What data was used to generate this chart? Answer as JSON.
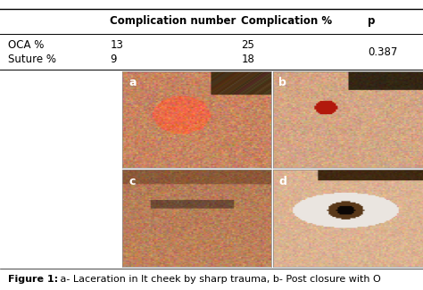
{
  "table_header": [
    "",
    "Complication number",
    "Complication %",
    "p"
  ],
  "table_rows": [
    [
      "OCA %",
      "13",
      "25",
      ""
    ],
    [
      "Suture %",
      "9",
      "18",
      "0.387"
    ]
  ],
  "p_value": "0.387",
  "caption_bold": "Figure 1:",
  "caption_rest": " a- Laceration in lt cheek by sharp trauma, b- Post closure with O",
  "photo_labels": [
    "a",
    "b",
    "c",
    "d"
  ],
  "background_color": "#ffffff",
  "table_line_color": "#000000",
  "header_font_size": 8.5,
  "row_font_size": 8.5,
  "caption_font_size": 8,
  "label_font_size": 9,
  "fig_width": 4.74,
  "fig_height": 3.25,
  "img_colors_a": {
    "skin": [
      0.78,
      0.55,
      0.42
    ],
    "red": [
      0.75,
      0.2,
      0.15
    ],
    "hair": [
      0.35,
      0.22,
      0.12
    ]
  },
  "img_colors_b": {
    "skin": [
      0.82,
      0.65,
      0.52
    ],
    "red": [
      0.7,
      0.15,
      0.1
    ],
    "hair": [
      0.25,
      0.18,
      0.1
    ]
  },
  "img_colors_c": {
    "skin": [
      0.72,
      0.5,
      0.38
    ],
    "hair": [
      0.2,
      0.12,
      0.06
    ]
  },
  "img_colors_d": {
    "skin": [
      0.85,
      0.7,
      0.58
    ],
    "eye": [
      0.3,
      0.18,
      0.08
    ],
    "hair": [
      0.28,
      0.18,
      0.08
    ]
  }
}
